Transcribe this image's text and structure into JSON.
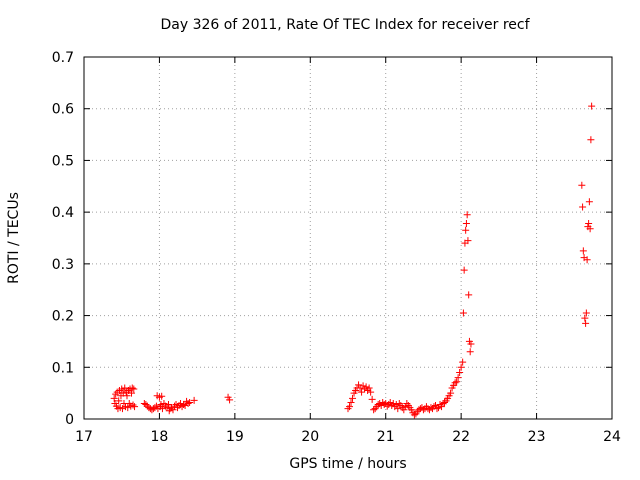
{
  "chart_data": {
    "type": "scatter",
    "title": "Day 326 of 2011, Rate Of TEC Index for receiver recf",
    "xlabel": "GPS time / hours",
    "ylabel": "ROTI / TECUs",
    "xlim": [
      17,
      24
    ],
    "ylim": [
      0,
      0.7
    ],
    "xticks": [
      "17",
      "18",
      "19",
      "20",
      "21",
      "22",
      "23",
      "24"
    ],
    "yticks": [
      "0",
      "0.1",
      "0.2",
      "0.3",
      "0.4",
      "0.5",
      "0.6",
      "0.7"
    ],
    "grid": true,
    "marker": "+",
    "color": "#ff0000",
    "points": [
      [
        17.4,
        0.04
      ],
      [
        17.41,
        0.03
      ],
      [
        17.42,
        0.048
      ],
      [
        17.43,
        0.025
      ],
      [
        17.44,
        0.052
      ],
      [
        17.45,
        0.02
      ],
      [
        17.46,
        0.035
      ],
      [
        17.47,
        0.055
      ],
      [
        17.48,
        0.022
      ],
      [
        17.49,
        0.045
      ],
      [
        17.5,
        0.058
      ],
      [
        17.51,
        0.02
      ],
      [
        17.52,
        0.05
      ],
      [
        17.53,
        0.03
      ],
      [
        17.54,
        0.06
      ],
      [
        17.55,
        0.024
      ],
      [
        17.56,
        0.052
      ],
      [
        17.57,
        0.045
      ],
      [
        17.58,
        0.022
      ],
      [
        17.59,
        0.055
      ],
      [
        17.6,
        0.03
      ],
      [
        17.61,
        0.058
      ],
      [
        17.62,
        0.025
      ],
      [
        17.63,
        0.05
      ],
      [
        17.64,
        0.06
      ],
      [
        17.65,
        0.027
      ],
      [
        17.66,
        0.058
      ],
      [
        17.67,
        0.024
      ],
      [
        17.8,
        0.03
      ],
      [
        17.82,
        0.028
      ],
      [
        17.84,
        0.025
      ],
      [
        17.86,
        0.022
      ],
      [
        17.88,
        0.02
      ],
      [
        17.9,
        0.018
      ],
      [
        17.92,
        0.02
      ],
      [
        17.94,
        0.022
      ],
      [
        17.96,
        0.025
      ],
      [
        17.97,
        0.045
      ],
      [
        17.98,
        0.02
      ],
      [
        18.0,
        0.042
      ],
      [
        18.01,
        0.024
      ],
      [
        18.02,
        0.028
      ],
      [
        18.03,
        0.044
      ],
      [
        18.04,
        0.02
      ],
      [
        18.06,
        0.03
      ],
      [
        18.08,
        0.025
      ],
      [
        18.1,
        0.022
      ],
      [
        18.12,
        0.028
      ],
      [
        18.13,
        0.016
      ],
      [
        18.14,
        0.02
      ],
      [
        18.16,
        0.022
      ],
      [
        18.18,
        0.018
      ],
      [
        18.2,
        0.025
      ],
      [
        18.22,
        0.028
      ],
      [
        18.24,
        0.022
      ],
      [
        18.26,
        0.026
      ],
      [
        18.28,
        0.03
      ],
      [
        18.3,
        0.024
      ],
      [
        18.32,
        0.028
      ],
      [
        18.34,
        0.026
      ],
      [
        18.36,
        0.034
      ],
      [
        18.38,
        0.03
      ],
      [
        18.4,
        0.032
      ],
      [
        18.46,
        0.036
      ],
      [
        18.91,
        0.042
      ],
      [
        18.93,
        0.037
      ],
      [
        20.5,
        0.02
      ],
      [
        20.52,
        0.024
      ],
      [
        20.54,
        0.032
      ],
      [
        20.56,
        0.04
      ],
      [
        20.58,
        0.05
      ],
      [
        20.6,
        0.055
      ],
      [
        20.62,
        0.06
      ],
      [
        20.64,
        0.066
      ],
      [
        20.66,
        0.06
      ],
      [
        20.68,
        0.052
      ],
      [
        20.7,
        0.064
      ],
      [
        20.72,
        0.058
      ],
      [
        20.74,
        0.062
      ],
      [
        20.76,
        0.055
      ],
      [
        20.78,
        0.06
      ],
      [
        20.8,
        0.052
      ],
      [
        20.82,
        0.038
      ],
      [
        20.84,
        0.018
      ],
      [
        20.86,
        0.02
      ],
      [
        20.88,
        0.024
      ],
      [
        20.9,
        0.028
      ],
      [
        20.92,
        0.03
      ],
      [
        20.94,
        0.026
      ],
      [
        20.96,
        0.032
      ],
      [
        20.98,
        0.028
      ],
      [
        21.0,
        0.03
      ],
      [
        21.02,
        0.025
      ],
      [
        21.04,
        0.028
      ],
      [
        21.06,
        0.032
      ],
      [
        21.08,
        0.026
      ],
      [
        21.1,
        0.03
      ],
      [
        21.12,
        0.024
      ],
      [
        21.14,
        0.028
      ],
      [
        21.16,
        0.02
      ],
      [
        21.18,
        0.03
      ],
      [
        21.2,
        0.026
      ],
      [
        21.22,
        0.022
      ],
      [
        21.24,
        0.018
      ],
      [
        21.26,
        0.024
      ],
      [
        21.28,
        0.03
      ],
      [
        21.3,
        0.026
      ],
      [
        21.32,
        0.022
      ],
      [
        21.34,
        0.018
      ],
      [
        21.36,
        0.012
      ],
      [
        21.38,
        0.008
      ],
      [
        21.4,
        0.01
      ],
      [
        21.42,
        0.015
      ],
      [
        21.44,
        0.018
      ],
      [
        21.46,
        0.02
      ],
      [
        21.48,
        0.022
      ],
      [
        21.5,
        0.018
      ],
      [
        21.52,
        0.02
      ],
      [
        21.54,
        0.024
      ],
      [
        21.56,
        0.02
      ],
      [
        21.58,
        0.018
      ],
      [
        21.6,
        0.022
      ],
      [
        21.62,
        0.02
      ],
      [
        21.64,
        0.024
      ],
      [
        21.66,
        0.026
      ],
      [
        21.68,
        0.02
      ],
      [
        21.7,
        0.022
      ],
      [
        21.72,
        0.028
      ],
      [
        21.74,
        0.024
      ],
      [
        21.76,
        0.03
      ],
      [
        21.78,
        0.032
      ],
      [
        21.8,
        0.035
      ],
      [
        21.82,
        0.04
      ],
      [
        21.84,
        0.045
      ],
      [
        21.86,
        0.05
      ],
      [
        21.88,
        0.06
      ],
      [
        21.9,
        0.065
      ],
      [
        21.92,
        0.07
      ],
      [
        21.94,
        0.072
      ],
      [
        21.96,
        0.08
      ],
      [
        21.98,
        0.09
      ],
      [
        22.0,
        0.1
      ],
      [
        22.02,
        0.11
      ],
      [
        22.03,
        0.205
      ],
      [
        22.04,
        0.288
      ],
      [
        22.05,
        0.34
      ],
      [
        22.06,
        0.365
      ],
      [
        22.07,
        0.378
      ],
      [
        22.08,
        0.395
      ],
      [
        22.09,
        0.345
      ],
      [
        22.1,
        0.24
      ],
      [
        22.11,
        0.15
      ],
      [
        22.12,
        0.13
      ],
      [
        22.13,
        0.145
      ],
      [
        23.6,
        0.452
      ],
      [
        23.61,
        0.41
      ],
      [
        23.62,
        0.325
      ],
      [
        23.63,
        0.312
      ],
      [
        23.64,
        0.195
      ],
      [
        23.65,
        0.185
      ],
      [
        23.66,
        0.205
      ],
      [
        23.67,
        0.308
      ],
      [
        23.68,
        0.372
      ],
      [
        23.69,
        0.378
      ],
      [
        23.7,
        0.42
      ],
      [
        23.71,
        0.368
      ],
      [
        23.72,
        0.54
      ],
      [
        23.73,
        0.605
      ]
    ]
  }
}
